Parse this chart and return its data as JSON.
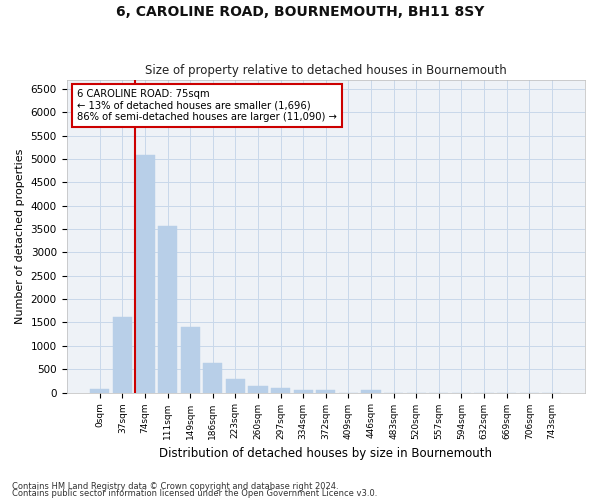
{
  "title": "6, CAROLINE ROAD, BOURNEMOUTH, BH11 8SY",
  "subtitle": "Size of property relative to detached houses in Bournemouth",
  "xlabel": "Distribution of detached houses by size in Bournemouth",
  "ylabel": "Number of detached properties",
  "bar_color": "#b8cfe8",
  "bar_edge_color": "#b8cfe8",
  "grid_color": "#c8d8ea",
  "bg_color": "#eef2f7",
  "categories": [
    "0sqm",
    "37sqm",
    "74sqm",
    "111sqm",
    "149sqm",
    "186sqm",
    "223sqm",
    "260sqm",
    "297sqm",
    "334sqm",
    "372sqm",
    "409sqm",
    "446sqm",
    "483sqm",
    "520sqm",
    "557sqm",
    "594sqm",
    "632sqm",
    "669sqm",
    "706sqm",
    "743sqm"
  ],
  "values": [
    75,
    1625,
    5075,
    3575,
    1400,
    625,
    300,
    150,
    100,
    60,
    55,
    0,
    55,
    0,
    0,
    0,
    0,
    0,
    0,
    0,
    0
  ],
  "vline_color": "#cc0000",
  "vline_index": 2,
  "annotation_text": "6 CAROLINE ROAD: 75sqm\n← 13% of detached houses are smaller (1,696)\n86% of semi-detached houses are larger (11,090) →",
  "ylim": [
    0,
    6700
  ],
  "yticks": [
    0,
    500,
    1000,
    1500,
    2000,
    2500,
    3000,
    3500,
    4000,
    4500,
    5000,
    5500,
    6000,
    6500
  ],
  "footnote1": "Contains HM Land Registry data © Crown copyright and database right 2024.",
  "footnote2": "Contains public sector information licensed under the Open Government Licence v3.0."
}
